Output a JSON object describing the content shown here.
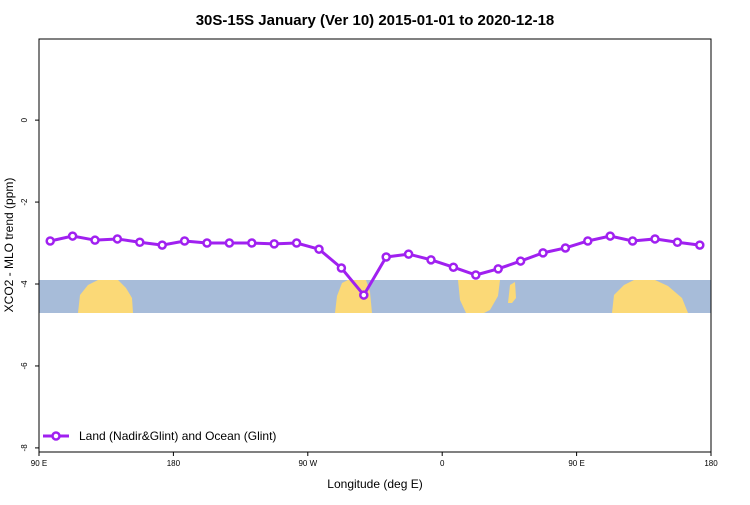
{
  "chart_data": {
    "type": "line",
    "title": "30S-15S January (Ver 10)   2015-01-01 to 2020-12-18",
    "xlabel": "Longitude (deg E)",
    "ylabel": "XCO2 - MLO trend (ppm)",
    "xlim": [
      90,
      540
    ],
    "xticks": [
      {
        "value": 90,
        "label": "90 E"
      },
      {
        "value": 180,
        "label": "180"
      },
      {
        "value": 270,
        "label": "90 W"
      },
      {
        "value": 360,
        "label": "0"
      },
      {
        "value": 450,
        "label": "90 E"
      },
      {
        "value": 540,
        "label": "180"
      }
    ],
    "ylim": [
      -8.1,
      1.98
    ],
    "yticks": [
      0,
      -2,
      -4,
      -6,
      -8
    ],
    "legend": "lower left",
    "x": [
      97.5,
      112.5,
      127.5,
      142.5,
      157.5,
      172.5,
      187.5,
      202.5,
      217.5,
      232.5,
      247.5,
      262.5,
      277.5,
      292.5,
      307.5,
      322.5,
      337.5,
      352.5,
      367.5,
      382.5,
      397.5,
      412.5,
      427.5,
      442.5,
      457.5,
      472.5,
      487.5,
      502.5,
      517.5,
      532.5
    ],
    "series": [
      {
        "name": "Land (Nadir&Glint) and Ocean (Glint)",
        "color": "#a020f0",
        "values": [
          -2.95,
          -2.83,
          -2.93,
          -2.9,
          -2.98,
          -3.05,
          -2.95,
          -3.0,
          -3.0,
          -3.0,
          -3.02,
          -3.0,
          -3.15,
          -3.61,
          -4.27,
          -3.34,
          -3.27,
          -3.41,
          -3.59,
          -3.78,
          -3.63,
          -3.44,
          -3.24,
          -3.12,
          -2.95,
          -2.83,
          -2.95,
          -2.9,
          -2.98,
          -3.05
        ]
      }
    ]
  }
}
